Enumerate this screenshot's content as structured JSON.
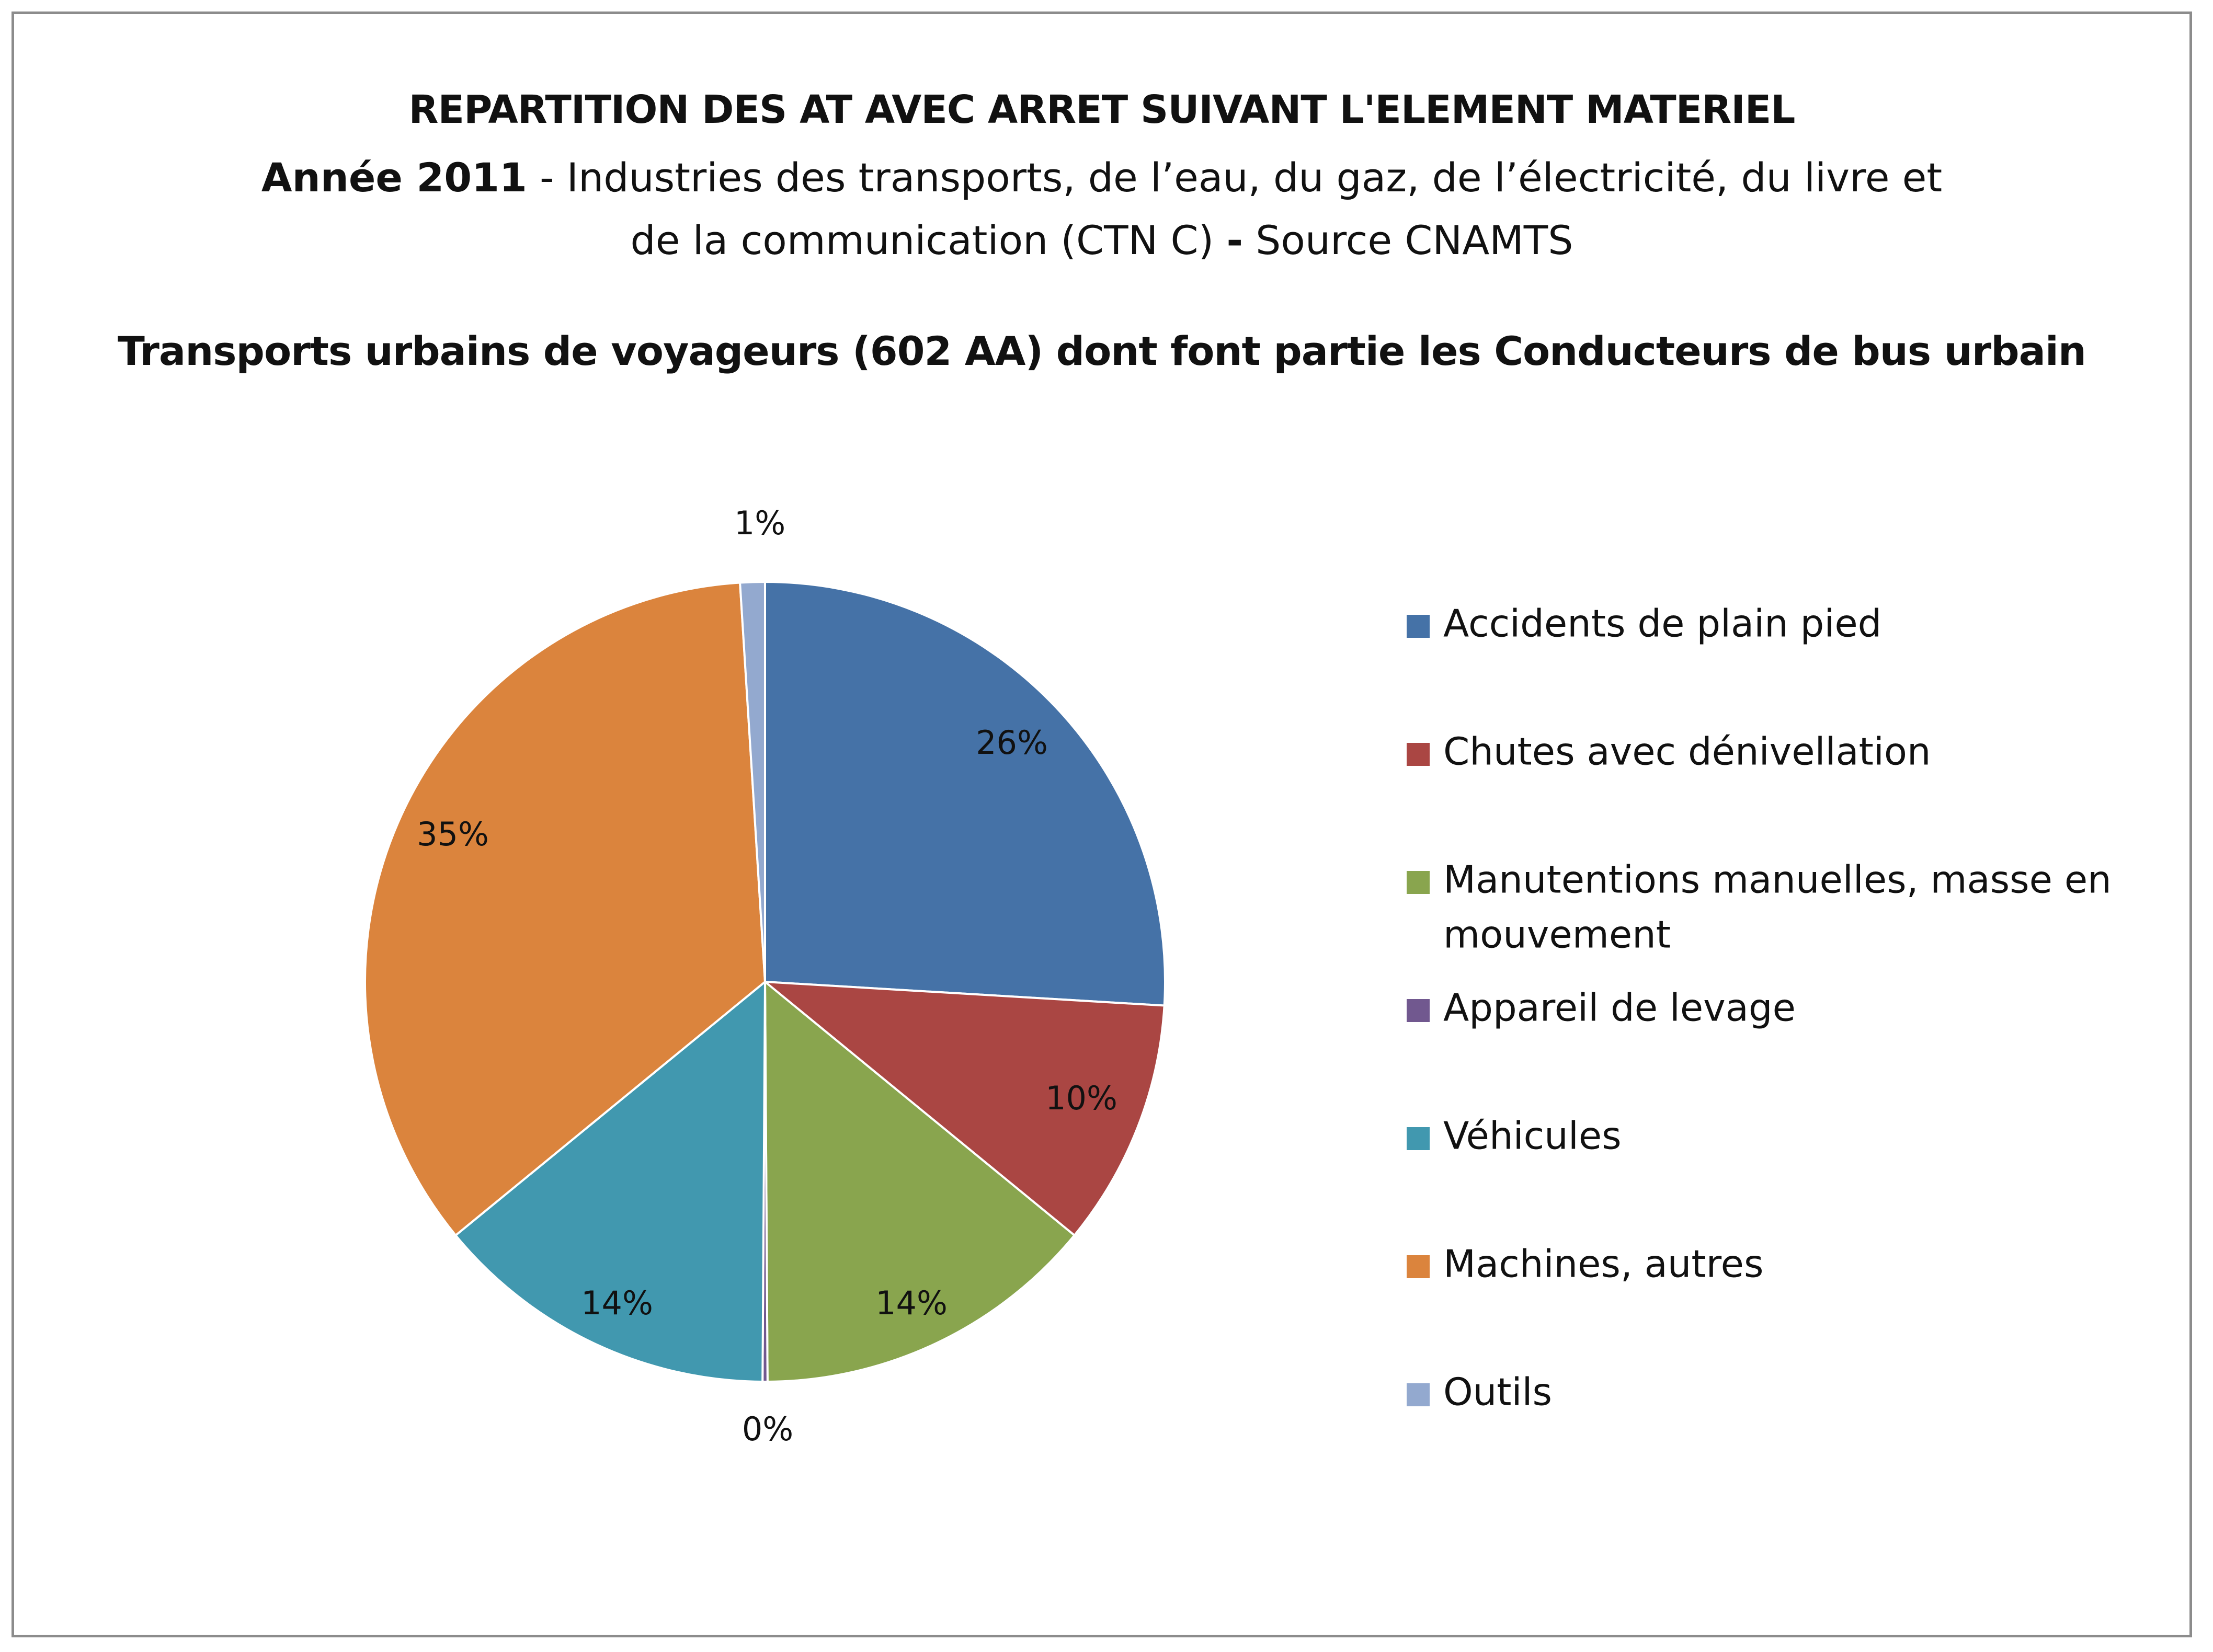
{
  "chart_data": {
    "type": "pie",
    "title": "REPARTITION DES AT AVEC ARRET SUIVANT L'ELEMENT MATERIEL",
    "title_line2_bold": "Année 2011",
    "title_line2_rest": " - Industries des transports, de l’eau, du gaz, de l’électricité, du livre et",
    "title_line3_start": "de la communication (CTN C) ",
    "title_line3_bold": "-",
    "title_line3_end": " Source CNAMTS",
    "subtitle": "Transports urbains de voyageurs (602 AA) dont font partie les Conducteurs de bus urbain",
    "legend_position": "right",
    "slices": [
      {
        "name": "Accidents de plain pied",
        "value": 26,
        "label": "26%",
        "color": "#4572A7"
      },
      {
        "name": "Chutes avec dénivellation",
        "value": 10,
        "label": "10%",
        "color": "#AA4643"
      },
      {
        "name": "Manutentions manuelles, masse en mouvement",
        "value": 14,
        "label": "14%",
        "color": "#89A54E"
      },
      {
        "name": "Appareil de levage",
        "value": 0.2,
        "label": "0%",
        "color": "#71588F"
      },
      {
        "name": "Véhicules",
        "value": 14,
        "label": "14%",
        "color": "#4198AF"
      },
      {
        "name": "Machines, autres",
        "value": 35,
        "label": "35%",
        "color": "#DB843D"
      },
      {
        "name": "Outils",
        "value": 1,
        "label": "1%",
        "color": "#93A9CF"
      }
    ],
    "legend_lines": [
      [
        "Accidents de plain pied"
      ],
      [
        "Chutes avec dénivellation"
      ],
      [
        "Manutentions manuelles, masse en",
        "mouvement"
      ],
      [
        "Appareil de levage"
      ],
      [
        "Véhicules"
      ],
      [
        "Machines, autres"
      ],
      [
        "Outils"
      ]
    ]
  }
}
